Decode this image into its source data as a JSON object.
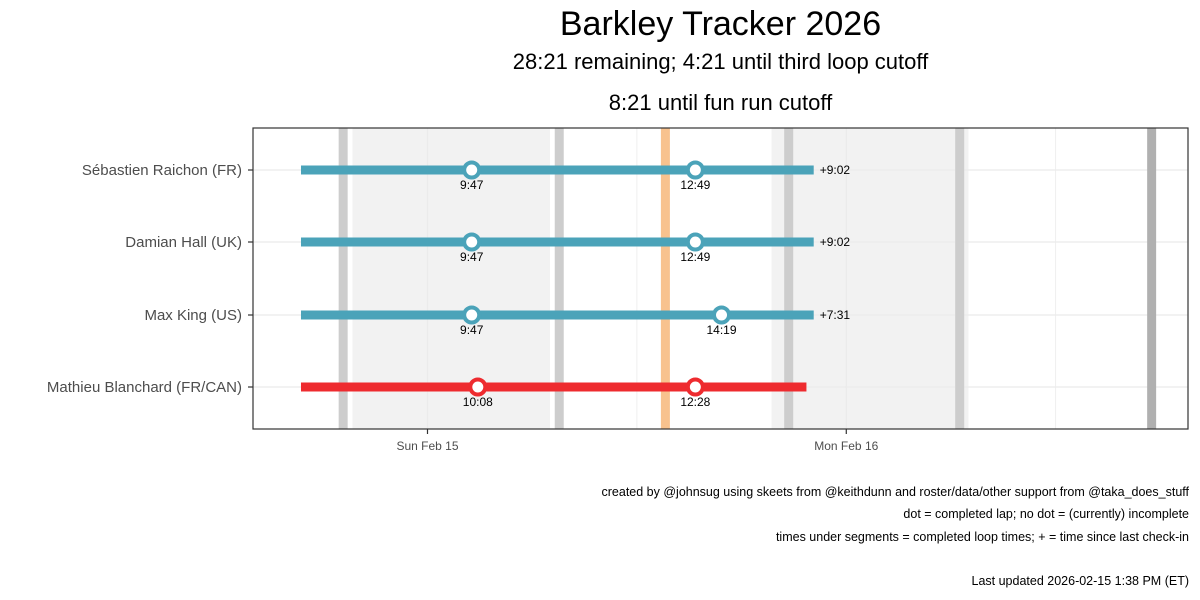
{
  "header": {
    "title": "Barkley Tracker 2026",
    "subtitle_line1": "28:21 remaining; 4:21 until third loop cutoff",
    "subtitle_line2": "8:21 until fun run cutoff"
  },
  "captions": {
    "credit": "created by @johnsug using skeets from @keithdunn and roster/data/other support from @taka_does_stuff",
    "legend_note": "dot = completed lap; no dot = (currently) incomplete",
    "times_note": "times under segments = completed loop times; + = time since last check-in",
    "updated": "Last updated 2026-02-15 1:38 PM (ET)"
  },
  "colors": {
    "teal": "#4ba3b9",
    "red": "#ee2b2f",
    "orange": "#f8c28e",
    "night_shade": "#f2f2f2",
    "band_gray": "#cdcdcd",
    "band_dark": "#b0b0b0",
    "grid": "#ebebeb",
    "border": "#333333"
  },
  "chart_data": {
    "type": "gantt-timeline",
    "x_axis": {
      "type": "datetime",
      "ticks": [
        "Sun Feb 15",
        "Mon Feb 16"
      ],
      "tick_values": [
        "2026-02-15T00:00",
        "2026-02-16T00:00"
      ],
      "range": [
        "2026-02-14T14:00",
        "2026-02-16T19:35"
      ]
    },
    "background": {
      "night_shades": [
        {
          "start": "2026-02-14T19:42",
          "end": "2026-02-15T07:01"
        },
        {
          "start": "2026-02-15T19:43",
          "end": "2026-02-16T07:00"
        },
        {
          "start": "2026-02-16T19:45",
          "end": "2026-02-16T19:35"
        }
      ],
      "gray_bands": [
        {
          "center": "2026-02-14T19:10"
        },
        {
          "center": "2026-02-15T07:33"
        },
        {
          "center": "2026-02-15T20:42"
        },
        {
          "center": "2026-02-16T06:30"
        }
      ],
      "dark_bands": [
        {
          "center": "2026-02-16T17:30"
        }
      ],
      "current_time_marker": {
        "time": "2026-02-15T13:38",
        "color": "orange"
      }
    },
    "runners": [
      {
        "name": "Sébastien Raichon (FR)",
        "status": "in_progress",
        "color": "teal",
        "start": "2026-02-14T16:45",
        "end": "2026-02-15T22:08",
        "laps": [
          {
            "time": "2026-02-15T02:32",
            "label": "9:47"
          },
          {
            "time": "2026-02-15T15:21",
            "label": "12:49"
          }
        ],
        "since_checkin": "+9:02"
      },
      {
        "name": "Damian Hall (UK)",
        "status": "in_progress",
        "color": "teal",
        "start": "2026-02-14T16:45",
        "end": "2026-02-15T22:08",
        "laps": [
          {
            "time": "2026-02-15T02:32",
            "label": "9:47"
          },
          {
            "time": "2026-02-15T15:21",
            "label": "12:49"
          }
        ],
        "since_checkin": "+9:02"
      },
      {
        "name": "Max King (US)",
        "status": "in_progress",
        "color": "teal",
        "start": "2026-02-14T16:45",
        "end": "2026-02-15T22:08",
        "laps": [
          {
            "time": "2026-02-15T02:32",
            "label": "9:47"
          },
          {
            "time": "2026-02-15T16:51",
            "label": "14:19"
          }
        ],
        "since_checkin": "+7:31"
      },
      {
        "name": "Mathieu Blanchard (FR/CAN)",
        "status": "dropped",
        "color": "red",
        "start": "2026-02-14T16:45",
        "end": "2026-02-15T21:43",
        "laps": [
          {
            "time": "2026-02-15T02:53",
            "label": "10:08"
          },
          {
            "time": "2026-02-15T15:21",
            "label": "12:28"
          }
        ],
        "since_checkin": ""
      }
    ]
  }
}
